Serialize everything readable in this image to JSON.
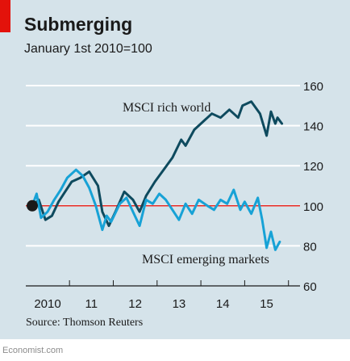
{
  "title": "Submerging",
  "subtitle": "January 1st 2010=100",
  "source": "Source: Thomson Reuters",
  "brand": "Economist.com",
  "colors": {
    "background": "#d5e3ea",
    "accent": "#e3120b",
    "rich_world": "#0e4a5e",
    "emerging": "#17a2d6",
    "baseline": "#e3120b",
    "grid": "#ffffff"
  },
  "chart_data": {
    "type": "line",
    "title": "Submerging",
    "subtitle": "January 1st 2010=100",
    "xlabel": "",
    "ylabel": "",
    "xlim": [
      2010.0,
      2015.8
    ],
    "ylim": [
      60,
      160
    ],
    "y_ticks": [
      60,
      80,
      100,
      120,
      140,
      160
    ],
    "x_ticks": [
      {
        "value": 2010,
        "label": "2010"
      },
      {
        "value": 2011,
        "label": "11"
      },
      {
        "value": 2012,
        "label": "12"
      },
      {
        "value": 2013,
        "label": "13"
      },
      {
        "value": 2014,
        "label": "14"
      },
      {
        "value": 2015,
        "label": "15"
      }
    ],
    "baseline": 100,
    "grid": true,
    "series": [
      {
        "name": "MSCI rich world",
        "x": [
          2010.0,
          2010.15,
          2010.3,
          2010.45,
          2010.6,
          2010.75,
          2010.9,
          2011.1,
          2011.3,
          2011.5,
          2011.6,
          2011.75,
          2011.9,
          2012.1,
          2012.3,
          2012.45,
          2012.6,
          2012.8,
          2013.0,
          2013.2,
          2013.4,
          2013.5,
          2013.7,
          2013.9,
          2014.1,
          2014.3,
          2014.5,
          2014.7,
          2014.8,
          2015.0,
          2015.2,
          2015.35,
          2015.45,
          2015.55,
          2015.6,
          2015.7
        ],
        "y": [
          100,
          103,
          93,
          95,
          102,
          107,
          112,
          114,
          117,
          110,
          97,
          90,
          97,
          107,
          103,
          97,
          105,
          112,
          118,
          124,
          133,
          130,
          138,
          142,
          146,
          144,
          148,
          144,
          150,
          152,
          146,
          135,
          147,
          141,
          144,
          141
        ]
      },
      {
        "name": "MSCI emerging markets",
        "x": [
          2010.0,
          2010.1,
          2010.2,
          2010.35,
          2010.5,
          2010.65,
          2010.8,
          2011.0,
          2011.15,
          2011.3,
          2011.45,
          2011.6,
          2011.7,
          2011.8,
          2012.0,
          2012.15,
          2012.3,
          2012.45,
          2012.6,
          2012.75,
          2012.9,
          2013.05,
          2013.2,
          2013.35,
          2013.5,
          2013.65,
          2013.8,
          2014.0,
          2014.15,
          2014.3,
          2014.45,
          2014.6,
          2014.75,
          2014.85,
          2015.0,
          2015.15,
          2015.25,
          2015.35,
          2015.45,
          2015.55,
          2015.65
        ],
        "y": [
          100,
          106,
          94,
          97,
          103,
          108,
          114,
          118,
          115,
          109,
          100,
          88,
          95,
          92,
          101,
          104,
          97,
          90,
          103,
          101,
          106,
          103,
          98,
          93,
          101,
          96,
          103,
          100,
          98,
          103,
          101,
          108,
          98,
          102,
          96,
          104,
          93,
          79,
          87,
          78,
          82
        ]
      }
    ]
  }
}
